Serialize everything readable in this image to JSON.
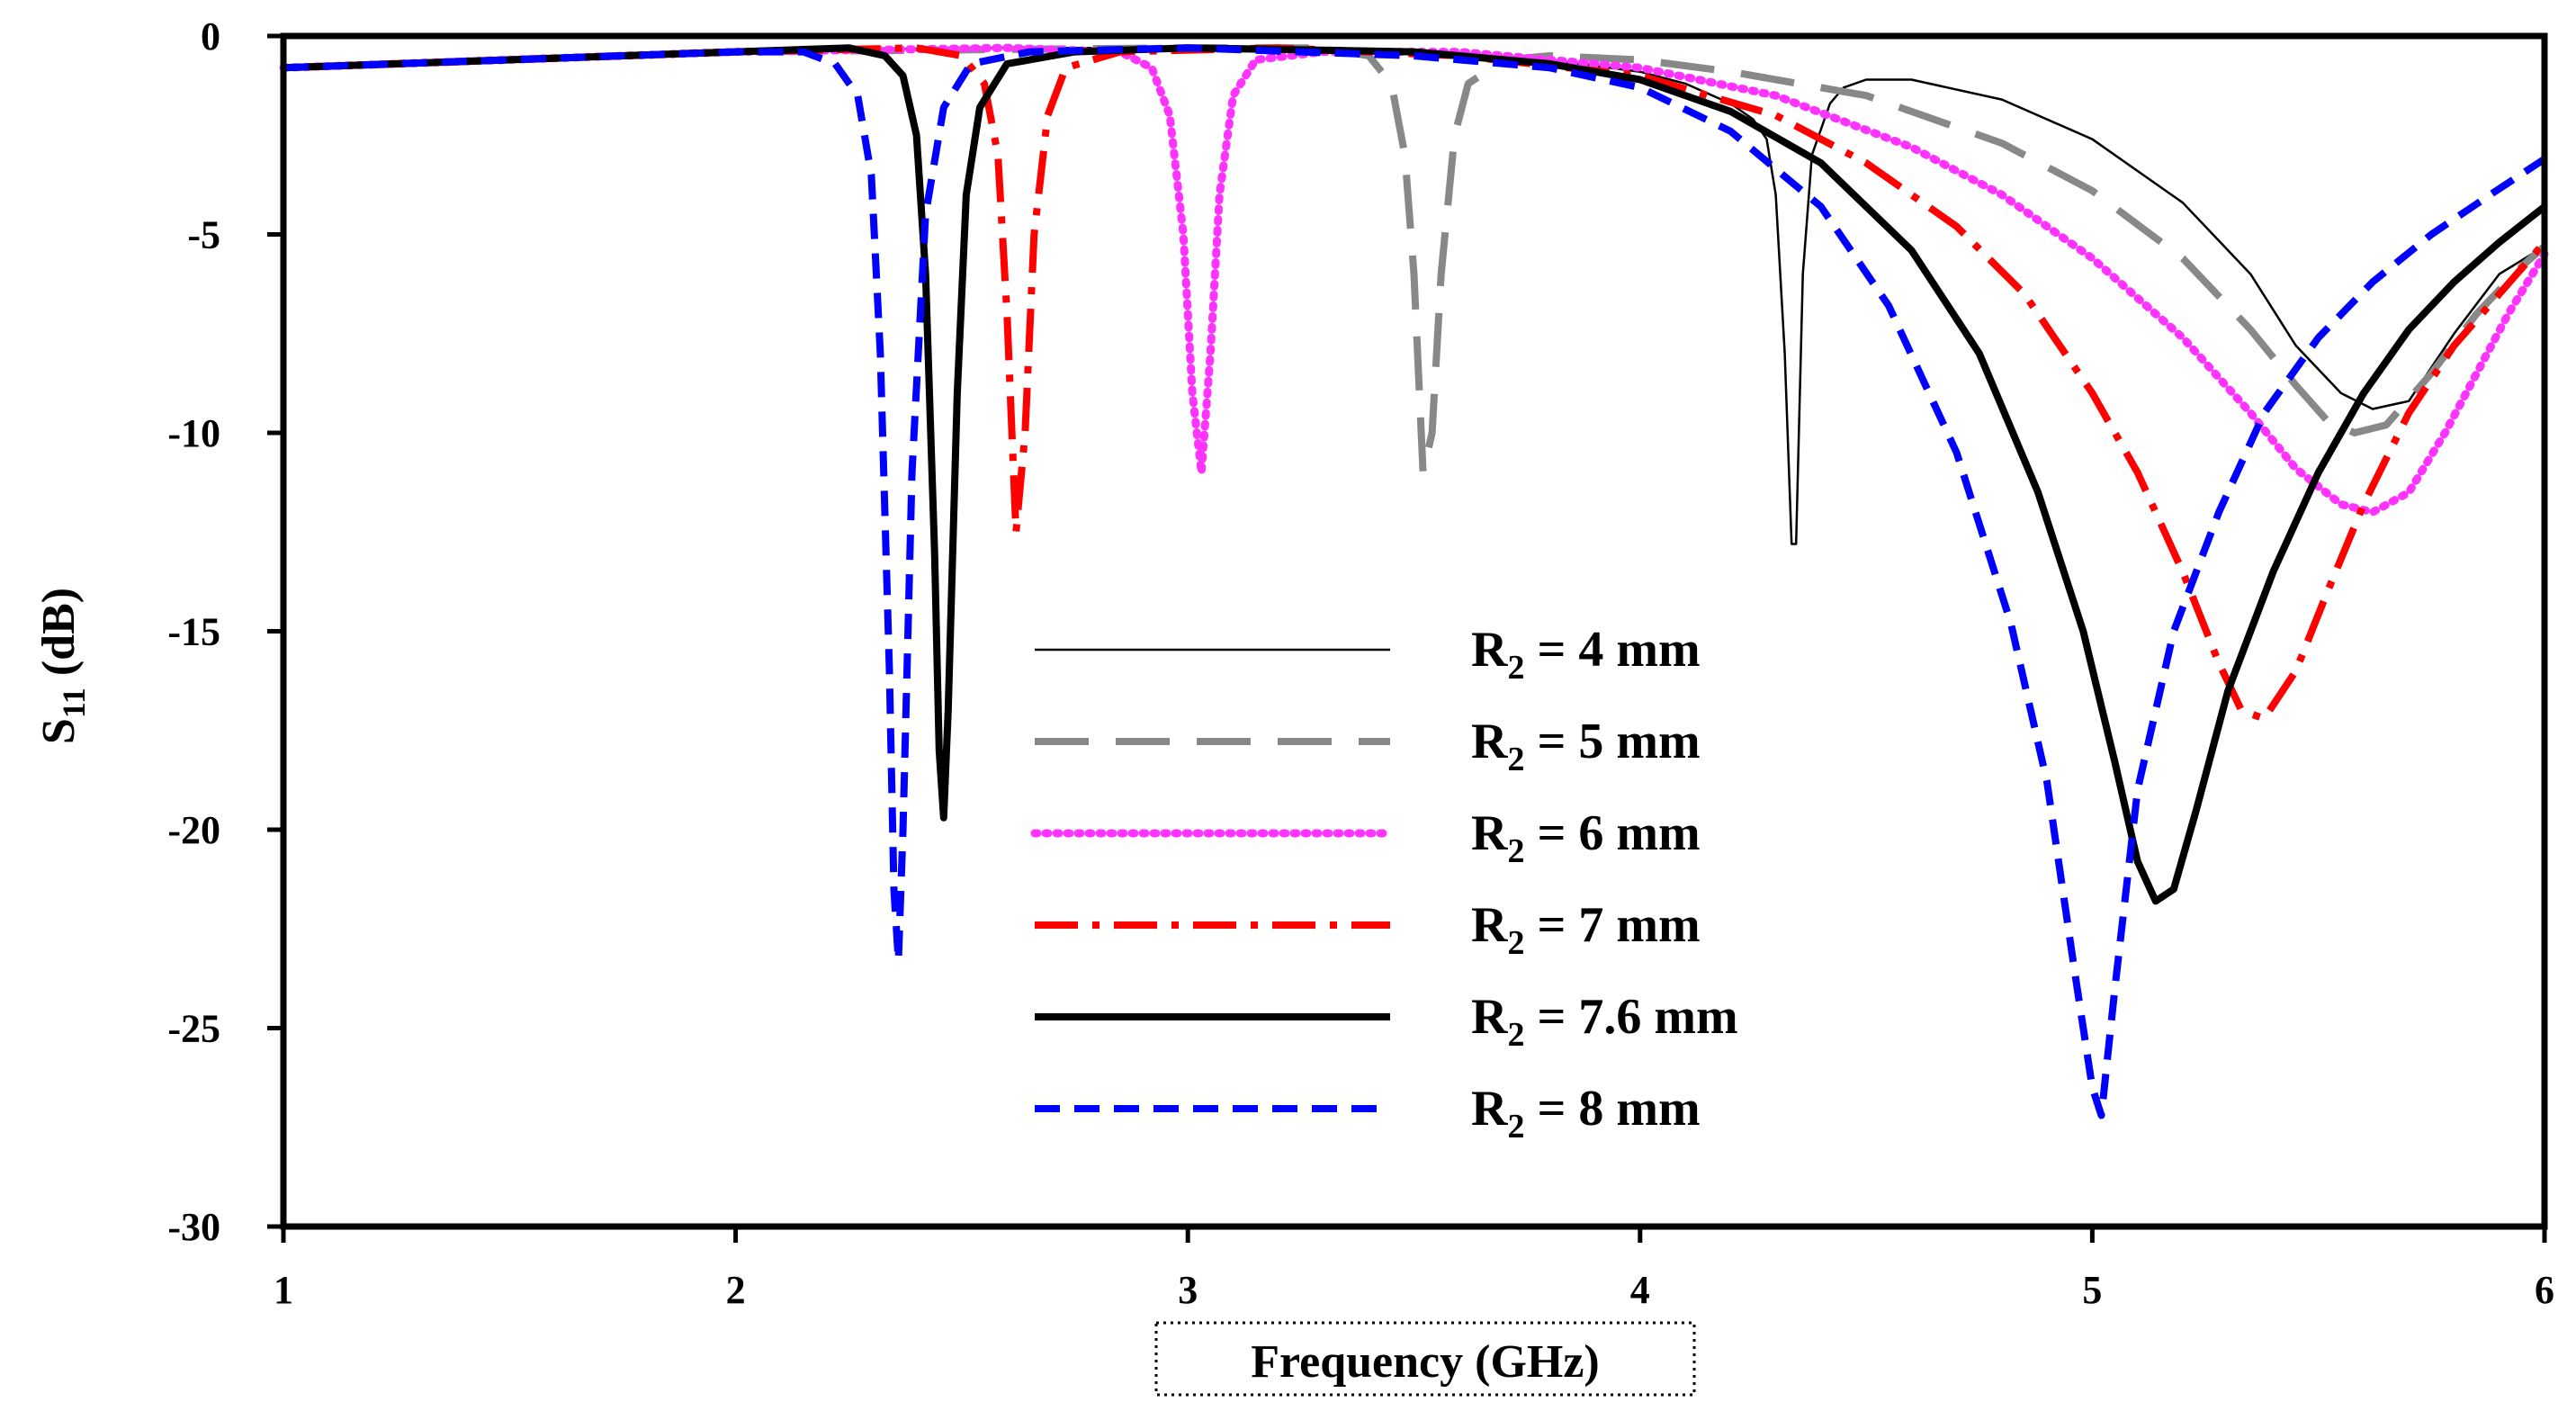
{
  "chart_data": {
    "type": "line",
    "title": "",
    "xlabel": "Frequency (GHz)",
    "ylabel_main": "S",
    "ylabel_sub": "11",
    "ylabel_unit": " (dB)",
    "xlim": [
      1,
      6
    ],
    "ylim": [
      -30,
      0
    ],
    "xticks": [
      1,
      2,
      3,
      4,
      5,
      6
    ],
    "xtick_labels": [
      "1",
      "2",
      "3",
      "4",
      "5",
      "6"
    ],
    "yticks": [
      0,
      -5,
      -10,
      -15,
      -20,
      -25,
      -30
    ],
    "ytick_labels": [
      "0",
      "-5",
      "-10",
      "-15",
      "-20",
      "-25",
      "-30"
    ],
    "legend_position": "center",
    "series": [
      {
        "name": "R2 = 4 mm",
        "label_main": "R",
        "label_sub": "2",
        "label_rest": " = 4 mm",
        "color": "#000000",
        "style": "thin",
        "points": [
          [
            1,
            -0.8
          ],
          [
            1.5,
            -0.6
          ],
          [
            2,
            -0.4
          ],
          [
            2.5,
            -0.3
          ],
          [
            3,
            -0.3
          ],
          [
            3.5,
            -0.4
          ],
          [
            3.8,
            -0.6
          ],
          [
            4.0,
            -0.9
          ],
          [
            4.1,
            -1.2
          ],
          [
            4.2,
            -1.7
          ],
          [
            4.25,
            -2.1
          ],
          [
            4.28,
            -2.6
          ],
          [
            4.3,
            -4
          ],
          [
            4.32,
            -8
          ],
          [
            4.335,
            -12.8
          ],
          [
            4.345,
            -12.8
          ],
          [
            4.36,
            -6
          ],
          [
            4.38,
            -3
          ],
          [
            4.42,
            -1.7
          ],
          [
            4.45,
            -1.3
          ],
          [
            4.5,
            -1.1
          ],
          [
            4.6,
            -1.1
          ],
          [
            4.8,
            -1.6
          ],
          [
            5.0,
            -2.6
          ],
          [
            5.2,
            -4.2
          ],
          [
            5.35,
            -6
          ],
          [
            5.45,
            -7.8
          ],
          [
            5.55,
            -9
          ],
          [
            5.62,
            -9.4
          ],
          [
            5.7,
            -9.2
          ],
          [
            5.8,
            -7.5
          ],
          [
            5.9,
            -6
          ],
          [
            6.0,
            -5.3
          ]
        ]
      },
      {
        "name": "R2 = 5 mm",
        "label_main": "R",
        "label_sub": "2",
        "label_rest": " = 5 mm",
        "color": "#888888",
        "style": "longdash",
        "points": [
          [
            1,
            -0.8
          ],
          [
            2,
            -0.4
          ],
          [
            3,
            -0.3
          ],
          [
            3.3,
            -0.3
          ],
          [
            3.4,
            -0.5
          ],
          [
            3.45,
            -1.2
          ],
          [
            3.48,
            -3
          ],
          [
            3.5,
            -6
          ],
          [
            3.52,
            -11
          ],
          [
            3.54,
            -10
          ],
          [
            3.56,
            -6
          ],
          [
            3.59,
            -2.5
          ],
          [
            3.62,
            -1.2
          ],
          [
            3.7,
            -0.6
          ],
          [
            3.8,
            -0.5
          ],
          [
            4.0,
            -0.6
          ],
          [
            4.2,
            -0.9
          ],
          [
            4.5,
            -1.5
          ],
          [
            4.8,
            -2.7
          ],
          [
            5.0,
            -3.9
          ],
          [
            5.2,
            -5.6
          ],
          [
            5.35,
            -7.4
          ],
          [
            5.45,
            -8.8
          ],
          [
            5.52,
            -9.7
          ],
          [
            5.58,
            -10.0
          ],
          [
            5.65,
            -9.8
          ],
          [
            5.75,
            -8.5
          ],
          [
            5.85,
            -7
          ],
          [
            5.95,
            -5.8
          ],
          [
            6.0,
            -5.3
          ]
        ]
      },
      {
        "name": "R2 = 6 mm",
        "label_main": "R",
        "label_sub": "2",
        "label_rest": " = 6 mm",
        "color": "#ff33ff",
        "style": "dotted",
        "points": [
          [
            1,
            -0.8
          ],
          [
            2,
            -0.4
          ],
          [
            2.6,
            -0.3
          ],
          [
            2.85,
            -0.4
          ],
          [
            2.92,
            -0.8
          ],
          [
            2.96,
            -2
          ],
          [
            2.99,
            -5
          ],
          [
            3.01,
            -9
          ],
          [
            3.03,
            -11
          ],
          [
            3.05,
            -8
          ],
          [
            3.07,
            -4
          ],
          [
            3.1,
            -1.5
          ],
          [
            3.15,
            -0.6
          ],
          [
            3.3,
            -0.4
          ],
          [
            3.6,
            -0.4
          ],
          [
            4.0,
            -0.8
          ],
          [
            4.3,
            -1.5
          ],
          [
            4.6,
            -2.8
          ],
          [
            4.8,
            -4
          ],
          [
            5.0,
            -5.6
          ],
          [
            5.2,
            -7.6
          ],
          [
            5.35,
            -9.5
          ],
          [
            5.45,
            -10.9
          ],
          [
            5.55,
            -11.8
          ],
          [
            5.62,
            -12
          ],
          [
            5.7,
            -11.5
          ],
          [
            5.78,
            -10
          ],
          [
            5.85,
            -8.5
          ],
          [
            5.92,
            -7
          ],
          [
            6.0,
            -5.5
          ]
        ]
      },
      {
        "name": "R2 = 7 mm",
        "label_main": "R",
        "label_sub": "2",
        "label_rest": " = 7 mm",
        "color": "#ff0000",
        "style": "dashdot",
        "points": [
          [
            1,
            -0.8
          ],
          [
            2,
            -0.4
          ],
          [
            2.4,
            -0.3
          ],
          [
            2.5,
            -0.5
          ],
          [
            2.55,
            -1.2
          ],
          [
            2.58,
            -3
          ],
          [
            2.6,
            -7
          ],
          [
            2.62,
            -12.5
          ],
          [
            2.64,
            -10
          ],
          [
            2.66,
            -5
          ],
          [
            2.69,
            -2
          ],
          [
            2.73,
            -0.8
          ],
          [
            2.85,
            -0.4
          ],
          [
            3.2,
            -0.3
          ],
          [
            3.6,
            -0.5
          ],
          [
            4.0,
            -1
          ],
          [
            4.3,
            -2
          ],
          [
            4.5,
            -3.2
          ],
          [
            4.7,
            -4.8
          ],
          [
            4.85,
            -6.5
          ],
          [
            5.0,
            -9
          ],
          [
            5.1,
            -11
          ],
          [
            5.2,
            -13.5
          ],
          [
            5.28,
            -15.8
          ],
          [
            5.33,
            -17
          ],
          [
            5.38,
            -17.2
          ],
          [
            5.45,
            -16
          ],
          [
            5.52,
            -14
          ],
          [
            5.6,
            -11.8
          ],
          [
            5.7,
            -9.5
          ],
          [
            5.8,
            -7.8
          ],
          [
            5.9,
            -6.5
          ],
          [
            6.0,
            -5.2
          ]
        ]
      },
      {
        "name": "R2 = 7.6 mm",
        "label_main": "R",
        "label_sub": "2",
        "label_rest": " = 7.6 mm",
        "color": "#000000",
        "style": "thick",
        "points": [
          [
            1,
            -0.8
          ],
          [
            2,
            -0.4
          ],
          [
            2.25,
            -0.3
          ],
          [
            2.33,
            -0.5
          ],
          [
            2.37,
            -1
          ],
          [
            2.4,
            -2.5
          ],
          [
            2.42,
            -6
          ],
          [
            2.44,
            -13
          ],
          [
            2.45,
            -18
          ],
          [
            2.46,
            -19.7
          ],
          [
            2.47,
            -17
          ],
          [
            2.49,
            -9
          ],
          [
            2.51,
            -4
          ],
          [
            2.54,
            -1.8
          ],
          [
            2.6,
            -0.7
          ],
          [
            2.75,
            -0.4
          ],
          [
            3.0,
            -0.3
          ],
          [
            3.5,
            -0.4
          ],
          [
            3.8,
            -0.7
          ],
          [
            4.0,
            -1.1
          ],
          [
            4.2,
            -1.9
          ],
          [
            4.4,
            -3.2
          ],
          [
            4.6,
            -5.4
          ],
          [
            4.75,
            -8
          ],
          [
            4.88,
            -11.5
          ],
          [
            4.98,
            -15
          ],
          [
            5.05,
            -18.3
          ],
          [
            5.1,
            -20.8
          ],
          [
            5.14,
            -21.8
          ],
          [
            5.18,
            -21.5
          ],
          [
            5.23,
            -19.5
          ],
          [
            5.3,
            -16.5
          ],
          [
            5.4,
            -13.5
          ],
          [
            5.5,
            -11
          ],
          [
            5.6,
            -9
          ],
          [
            5.7,
            -7.4
          ],
          [
            5.8,
            -6.2
          ],
          [
            5.9,
            -5.2
          ],
          [
            6.0,
            -4.3
          ]
        ]
      },
      {
        "name": "R2 = 8 mm",
        "label_main": "R",
        "label_sub": "2",
        "label_rest": " = 8 mm",
        "color": "#0000ff",
        "style": "dashed",
        "points": [
          [
            1,
            -0.8
          ],
          [
            2,
            -0.4
          ],
          [
            2.15,
            -0.4
          ],
          [
            2.22,
            -0.7
          ],
          [
            2.27,
            -1.5
          ],
          [
            2.3,
            -3.5
          ],
          [
            2.32,
            -8
          ],
          [
            2.34,
            -16
          ],
          [
            2.35,
            -21.5
          ],
          [
            2.36,
            -23.3
          ],
          [
            2.37,
            -20
          ],
          [
            2.39,
            -11
          ],
          [
            2.42,
            -4.5
          ],
          [
            2.46,
            -1.8
          ],
          [
            2.52,
            -0.7
          ],
          [
            2.65,
            -0.4
          ],
          [
            3.0,
            -0.3
          ],
          [
            3.5,
            -0.5
          ],
          [
            3.8,
            -0.8
          ],
          [
            4.0,
            -1.3
          ],
          [
            4.2,
            -2.4
          ],
          [
            4.4,
            -4.3
          ],
          [
            4.55,
            -6.8
          ],
          [
            4.7,
            -10.5
          ],
          [
            4.82,
            -14.8
          ],
          [
            4.9,
            -18.8
          ],
          [
            4.96,
            -23.5
          ],
          [
            5.0,
            -26.5
          ],
          [
            5.02,
            -27.2
          ],
          [
            5.05,
            -24
          ],
          [
            5.1,
            -19
          ],
          [
            5.18,
            -15
          ],
          [
            5.28,
            -12
          ],
          [
            5.38,
            -9.5
          ],
          [
            5.5,
            -7.6
          ],
          [
            5.62,
            -6.2
          ],
          [
            5.75,
            -5
          ],
          [
            5.88,
            -4
          ],
          [
            6.0,
            -3.1
          ]
        ]
      }
    ]
  }
}
